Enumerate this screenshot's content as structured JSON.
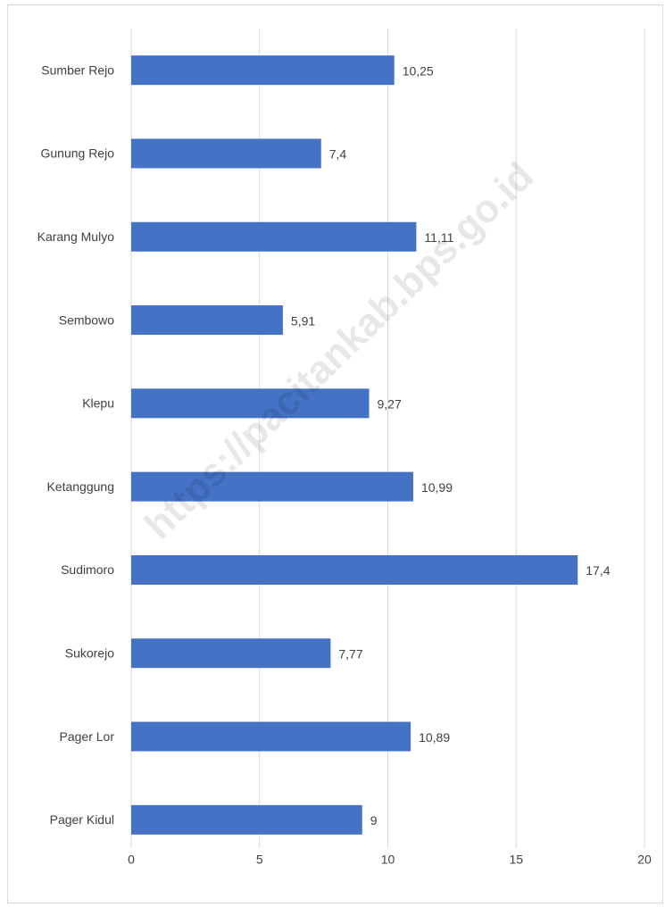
{
  "chart_data": {
    "type": "barh",
    "annotation": "https://pacitankab.bps.go.id",
    "categories": [
      "Sumber Rejo",
      "Gunung Rejo",
      "Karang Mulyo",
      "Sembowo",
      "Klepu",
      "Ketanggung",
      "Sudimoro",
      "Sukorejo",
      "Pager Lor",
      "Pager Kidul"
    ],
    "values": [
      10.25,
      7.4,
      11.11,
      5.91,
      9.27,
      10.99,
      17.4,
      7.77,
      10.89,
      9
    ],
    "value_labels": [
      "10,25",
      "7,4",
      "11,11",
      "5,91",
      "9,27",
      "10,99",
      "17,4",
      "7,77",
      "10,89",
      "9"
    ],
    "color": "#4472c4",
    "xlim": [
      0,
      20
    ],
    "xticks": [
      0,
      5,
      10,
      15,
      20
    ],
    "grid": true
  }
}
